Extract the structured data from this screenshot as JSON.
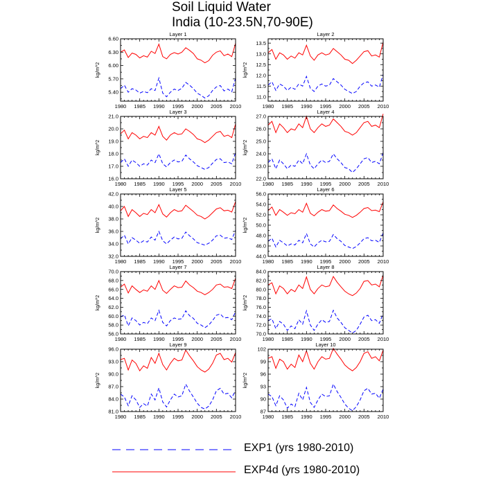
{
  "chart_data": {
    "type": "line",
    "title": "Soil Liquid Water",
    "subtitle": "India (10-23.5N,70-90E)",
    "x_range": [
      1980,
      2010
    ],
    "x_ticks": [
      1980,
      1985,
      1990,
      1995,
      2000,
      2005,
      2010
    ],
    "x_tick_labels": [
      "1980",
      "1985",
      "1990",
      "1995",
      "2000",
      "2005",
      "2010"
    ],
    "legend": [
      {
        "name": "EXP1 (yrs 1980-2010)",
        "color": "#0000ff",
        "style": "dashed"
      },
      {
        "name": "EXP4d (yrs 1980-2010)",
        "color": "#ff0000",
        "style": "solid"
      }
    ],
    "panels": [
      {
        "title": "Layer 1",
        "ylabel": "kg/m^2",
        "ylim": [
          5.2,
          6.6
        ],
        "yticks": [
          5.4,
          5.7,
          6.0,
          6.3,
          6.6
        ],
        "ytick_labels": [
          "5.40",
          "5.70",
          "6.00",
          "6.30",
          "6.60"
        ],
        "series": [
          {
            "name": "EXP4d",
            "values": [
              6.3,
              6.35,
              6.18,
              6.28,
              6.25,
              6.17,
              6.22,
              6.19,
              6.32,
              6.27,
              6.48,
              6.2,
              6.15,
              6.25,
              6.29,
              6.26,
              6.3,
              6.4,
              6.34,
              6.27,
              6.15,
              6.12,
              6.06,
              6.11,
              6.23,
              6.3,
              6.33,
              6.22,
              6.26,
              6.2,
              6.5
            ]
          },
          {
            "name": "EXP1",
            "values": [
              5.48,
              5.56,
              5.4,
              5.48,
              5.45,
              5.38,
              5.42,
              5.39,
              5.48,
              5.44,
              5.72,
              5.38,
              5.3,
              5.4,
              5.47,
              5.44,
              5.49,
              5.62,
              5.56,
              5.48,
              5.38,
              5.33,
              5.27,
              5.32,
              5.44,
              5.52,
              5.55,
              5.43,
              5.47,
              5.41,
              5.72
            ]
          }
        ]
      },
      {
        "title": "Layer 2",
        "ylabel": "kg/m^2",
        "ylim": [
          10.8,
          13.7
        ],
        "yticks": [
          11.0,
          11.5,
          12.0,
          12.5,
          13.0,
          13.5
        ],
        "ytick_labels": [
          "11.0",
          "11.5",
          "12.0",
          "12.5",
          "13.0",
          "13.5"
        ],
        "series": [
          {
            "name": "EXP4d",
            "values": [
              13.05,
              13.2,
              12.75,
              13.05,
              12.95,
              12.75,
              12.9,
              12.8,
              13.05,
              12.95,
              13.4,
              12.9,
              12.7,
              12.95,
              13.05,
              12.95,
              13.0,
              13.25,
              13.1,
              12.95,
              12.75,
              12.7,
              12.55,
              12.7,
              12.9,
              13.1,
              13.15,
              12.9,
              12.95,
              12.85,
              13.55
            ]
          },
          {
            "name": "EXP1",
            "values": [
              11.55,
              11.7,
              11.3,
              11.6,
              11.5,
              11.3,
              11.45,
              11.35,
              11.6,
              11.5,
              11.95,
              11.4,
              11.25,
              11.5,
              11.6,
              11.5,
              11.55,
              11.85,
              11.7,
              11.55,
              11.35,
              11.25,
              11.15,
              11.25,
              11.5,
              11.65,
              11.7,
              11.5,
              11.55,
              11.45,
              12.05
            ]
          }
        ]
      },
      {
        "title": "Layer 3",
        "ylabel": "kg/m^2",
        "ylim": [
          16.0,
          21.0
        ],
        "yticks": [
          16.0,
          17.0,
          18.0,
          19.0,
          20.0,
          21.0
        ],
        "ytick_labels": [
          "16.0",
          "17.0",
          "18.0",
          "19.0",
          "20.0",
          "21.0"
        ],
        "series": [
          {
            "name": "EXP4d",
            "values": [
              19.6,
              19.9,
              19.2,
              19.7,
              19.5,
              19.2,
              19.4,
              19.3,
              19.7,
              19.5,
              20.2,
              19.4,
              19.1,
              19.5,
              19.7,
              19.55,
              19.6,
              20.0,
              19.8,
              19.55,
              19.2,
              19.1,
              18.9,
              19.1,
              19.4,
              19.7,
              19.8,
              19.4,
              19.5,
              19.3,
              20.4
            ]
          },
          {
            "name": "EXP1",
            "values": [
              17.3,
              17.6,
              17.0,
              17.5,
              17.3,
              17.0,
              17.2,
              17.1,
              17.5,
              17.3,
              18.0,
              17.2,
              16.95,
              17.3,
              17.5,
              17.35,
              17.4,
              17.9,
              17.6,
              17.35,
              17.05,
              16.9,
              16.75,
              16.9,
              17.25,
              17.55,
              17.6,
              17.3,
              17.35,
              17.2,
              18.1
            ]
          }
        ]
      },
      {
        "title": "Layer 4",
        "ylabel": "kg/m^2",
        "ylim": [
          22.0,
          27.0
        ],
        "yticks": [
          22.0,
          23.0,
          24.0,
          25.0,
          26.0,
          27.0
        ],
        "ytick_labels": [
          "22.0",
          "23.0",
          "24.0",
          "25.0",
          "26.0",
          "27.0"
        ],
        "series": [
          {
            "name": "EXP4d",
            "values": [
              26.3,
              26.6,
              25.7,
              26.4,
              26.1,
              25.7,
              26.0,
              25.9,
              26.4,
              26.1,
              27.0,
              26.0,
              25.7,
              26.1,
              26.4,
              26.2,
              26.3,
              26.8,
              26.5,
              26.2,
              25.8,
              25.7,
              25.5,
              25.7,
              26.1,
              26.5,
              26.6,
              26.2,
              26.3,
              26.1,
              27.2
            ]
          },
          {
            "name": "EXP1",
            "values": [
              23.3,
              23.6,
              22.8,
              23.5,
              23.2,
              22.8,
              23.1,
              23.0,
              23.5,
              23.2,
              24.0,
              23.1,
              22.8,
              23.2,
              23.5,
              23.3,
              23.4,
              24.0,
              23.6,
              23.3,
              22.9,
              22.8,
              22.5,
              22.8,
              23.2,
              23.6,
              23.7,
              23.3,
              23.4,
              23.2,
              24.1
            ]
          }
        ]
      },
      {
        "title": "Layer 5",
        "ylabel": "kg/m^2",
        "ylim": [
          32.0,
          42.0
        ],
        "yticks": [
          32.0,
          34.0,
          36.0,
          38.0,
          40.0,
          42.0
        ],
        "ytick_labels": [
          "32.0",
          "34.0",
          "36.0",
          "38.0",
          "40.0",
          "42.0"
        ],
        "series": [
          {
            "name": "EXP4d",
            "values": [
              39.3,
              40.0,
              38.4,
              39.5,
              39.0,
              38.4,
              38.9,
              38.7,
              39.5,
              39.0,
              40.3,
              38.8,
              38.3,
              39.0,
              39.5,
              39.2,
              39.3,
              40.2,
              39.7,
              39.2,
              38.6,
              38.4,
              38.0,
              38.4,
              39.0,
              39.6,
              39.8,
              39.3,
              39.4,
              39.1,
              40.8
            ]
          },
          {
            "name": "EXP1",
            "values": [
              34.8,
              35.4,
              34.0,
              35.0,
              34.6,
              34.1,
              34.5,
              34.3,
              35.1,
              34.6,
              36.0,
              34.5,
              34.0,
              34.6,
              35.1,
              34.8,
              34.9,
              35.9,
              35.3,
              34.8,
              34.2,
              34.0,
              33.8,
              34.1,
              34.6,
              35.3,
              35.4,
              34.9,
              35.0,
              34.7,
              36.2
            ]
          }
        ]
      },
      {
        "title": "Layer 6",
        "ylabel": "kg/m^2",
        "ylim": [
          44.0,
          56.0
        ],
        "yticks": [
          44.0,
          46.0,
          48.0,
          50.0,
          52.0,
          54.0,
          56.0
        ],
        "ytick_labels": [
          "44.0",
          "46.0",
          "48.0",
          "50.0",
          "52.0",
          "54.0",
          "56.0"
        ],
        "series": [
          {
            "name": "EXP4d",
            "values": [
              52.8,
              53.5,
              51.9,
              53.0,
              52.5,
              51.9,
              52.4,
              52.2,
              53.0,
              52.5,
              54.2,
              52.3,
              51.8,
              52.5,
              53.0,
              52.7,
              52.8,
              53.9,
              53.2,
              52.7,
              52.1,
              51.9,
              51.5,
              51.9,
              52.5,
              53.2,
              53.4,
              52.8,
              52.9,
              52.6,
              54.5
            ]
          },
          {
            "name": "EXP1",
            "values": [
              46.9,
              47.5,
              45.8,
              47.1,
              46.6,
              46.0,
              46.4,
              46.2,
              47.1,
              46.6,
              48.4,
              46.4,
              45.8,
              46.6,
              47.1,
              46.8,
              46.9,
              48.2,
              47.4,
              46.9,
              46.1,
              45.8,
              45.5,
              45.9,
              46.6,
              47.4,
              47.6,
              47.0,
              47.1,
              46.7,
              48.5
            ]
          }
        ]
      },
      {
        "title": "Layer 7",
        "ylabel": "kg/m^2",
        "ylim": [
          56.0,
          70.0
        ],
        "yticks": [
          56.0,
          58.0,
          60.0,
          62.0,
          64.0,
          66.0,
          68.0,
          70.0
        ],
        "ytick_labels": [
          "56.0",
          "58.0",
          "60.0",
          "62.0",
          "64.0",
          "66.0",
          "68.0",
          "70.0"
        ],
        "series": [
          {
            "name": "EXP4d",
            "values": [
              66.5,
              67.2,
              65.2,
              66.8,
              66.0,
              65.3,
              65.9,
              65.6,
              66.8,
              66.0,
              68.0,
              65.8,
              65.1,
              66.0,
              66.8,
              66.4,
              66.5,
              67.9,
              67.0,
              66.4,
              65.6,
              65.3,
              64.8,
              65.3,
              66.0,
              67.0,
              67.2,
              66.5,
              66.6,
              66.2,
              68.5
            ]
          },
          {
            "name": "EXP1",
            "values": [
              59.8,
              60.3,
              57.8,
              59.6,
              59.0,
              58.0,
              58.6,
              58.3,
              59.6,
              59.0,
              61.3,
              58.6,
              57.8,
              59.0,
              59.6,
              59.3,
              59.4,
              61.2,
              60.1,
              59.5,
              58.4,
              58.0,
              57.4,
              58.0,
              59.0,
              60.2,
              60.5,
              59.6,
              59.7,
              59.2,
              61.0
            ]
          }
        ]
      },
      {
        "title": "Layer 8",
        "ylabel": "kg/m^2",
        "ylim": [
          70.0,
          84.0
        ],
        "yticks": [
          70.0,
          72.0,
          74.0,
          76.0,
          78.0,
          80.0,
          82.0,
          84.0
        ],
        "ytick_labels": [
          "70.0",
          "72.0",
          "74.0",
          "76.0",
          "78.0",
          "80.0",
          "82.0",
          "84.0"
        ],
        "series": [
          {
            "name": "EXP4d",
            "values": [
              81.0,
              81.5,
              79.0,
              80.8,
              80.2,
              79.0,
              80.0,
              79.5,
              81.0,
              80.2,
              82.8,
              80.0,
              79.0,
              80.2,
              81.0,
              80.6,
              80.8,
              82.9,
              81.6,
              80.6,
              79.6,
              79.0,
              78.6,
              79.2,
              80.2,
              81.8,
              82.0,
              81.0,
              81.2,
              80.6,
              83.2
            ]
          },
          {
            "name": "EXP1",
            "values": [
              73.0,
              73.4,
              71.2,
              72.8,
              72.2,
              70.8,
              71.8,
              71.2,
              73.2,
              72.2,
              75.2,
              72.0,
              70.8,
              72.2,
              73.2,
              72.6,
              72.8,
              75.3,
              73.6,
              72.6,
              71.4,
              70.8,
              70.2,
              70.8,
              72.2,
              73.8,
              74.2,
              73.0,
              73.2,
              72.4,
              74.6
            ]
          }
        ]
      },
      {
        "title": "Layer 9",
        "ylabel": "kg/m^2",
        "ylim": [
          81.0,
          96.0
        ],
        "yticks": [
          81.0,
          84.0,
          87.0,
          90.0,
          93.0,
          96.0
        ],
        "ytick_labels": [
          "81.0",
          "84.0",
          "87.0",
          "90.0",
          "93.0",
          "96.0"
        ],
        "series": [
          {
            "name": "EXP4d",
            "values": [
              93.5,
              93.8,
              91.0,
              93.4,
              92.6,
              90.8,
              92.0,
              91.4,
              94.0,
              92.6,
              95.0,
              92.3,
              91.0,
              92.6,
              93.8,
              93.2,
              93.4,
              95.8,
              94.4,
              93.2,
              91.8,
              91.0,
              90.5,
              91.2,
              92.6,
              94.6,
              95.0,
              93.5,
              93.8,
              92.9,
              95.2
            ]
          },
          {
            "name": "EXP1",
            "values": [
              85.2,
              84.5,
              82.4,
              84.8,
              83.8,
              82.0,
              82.9,
              82.3,
              85.2,
              83.8,
              86.7,
              83.3,
              82.1,
              83.8,
              85.2,
              84.5,
              84.8,
              87.6,
              85.9,
              84.5,
              83.0,
              82.0,
              81.6,
              82.3,
              83.8,
              86.0,
              86.6,
              85.2,
              85.4,
              84.3,
              86.1
            ]
          }
        ]
      },
      {
        "title": "Layer 10",
        "ylabel": "kg/m^2",
        "ylim": [
          87.0,
          102.0
        ],
        "yticks": [
          87.0,
          90.0,
          93.0,
          96.0,
          99.0,
          102.0
        ],
        "ytick_labels": [
          "87",
          "90",
          "93",
          "96",
          "99",
          "102"
        ],
        "series": [
          {
            "name": "EXP4d",
            "values": [
              99.8,
              100.2,
              97.4,
              99.6,
              99.0,
              97.2,
              98.4,
              97.6,
              100.6,
              99.0,
              101.6,
              98.6,
              97.2,
              99.0,
              100.2,
              99.6,
              99.8,
              102.2,
              100.8,
              99.6,
              98.2,
              97.4,
              96.8,
              97.6,
              99.0,
              101.0,
              101.4,
              99.8,
              100.2,
              99.2,
              101.8
            ]
          },
          {
            "name": "EXP1",
            "values": [
              91.2,
              90.6,
              88.4,
              90.8,
              89.8,
              87.8,
              88.8,
              88.2,
              91.4,
              89.8,
              92.8,
              89.2,
              88.0,
              89.8,
              91.2,
              90.6,
              90.8,
              93.6,
              91.8,
              90.4,
              88.8,
              87.8,
              87.2,
              88.2,
              89.8,
              92.0,
              92.6,
              91.2,
              91.4,
              90.2,
              92.4
            ]
          }
        ]
      }
    ]
  }
}
